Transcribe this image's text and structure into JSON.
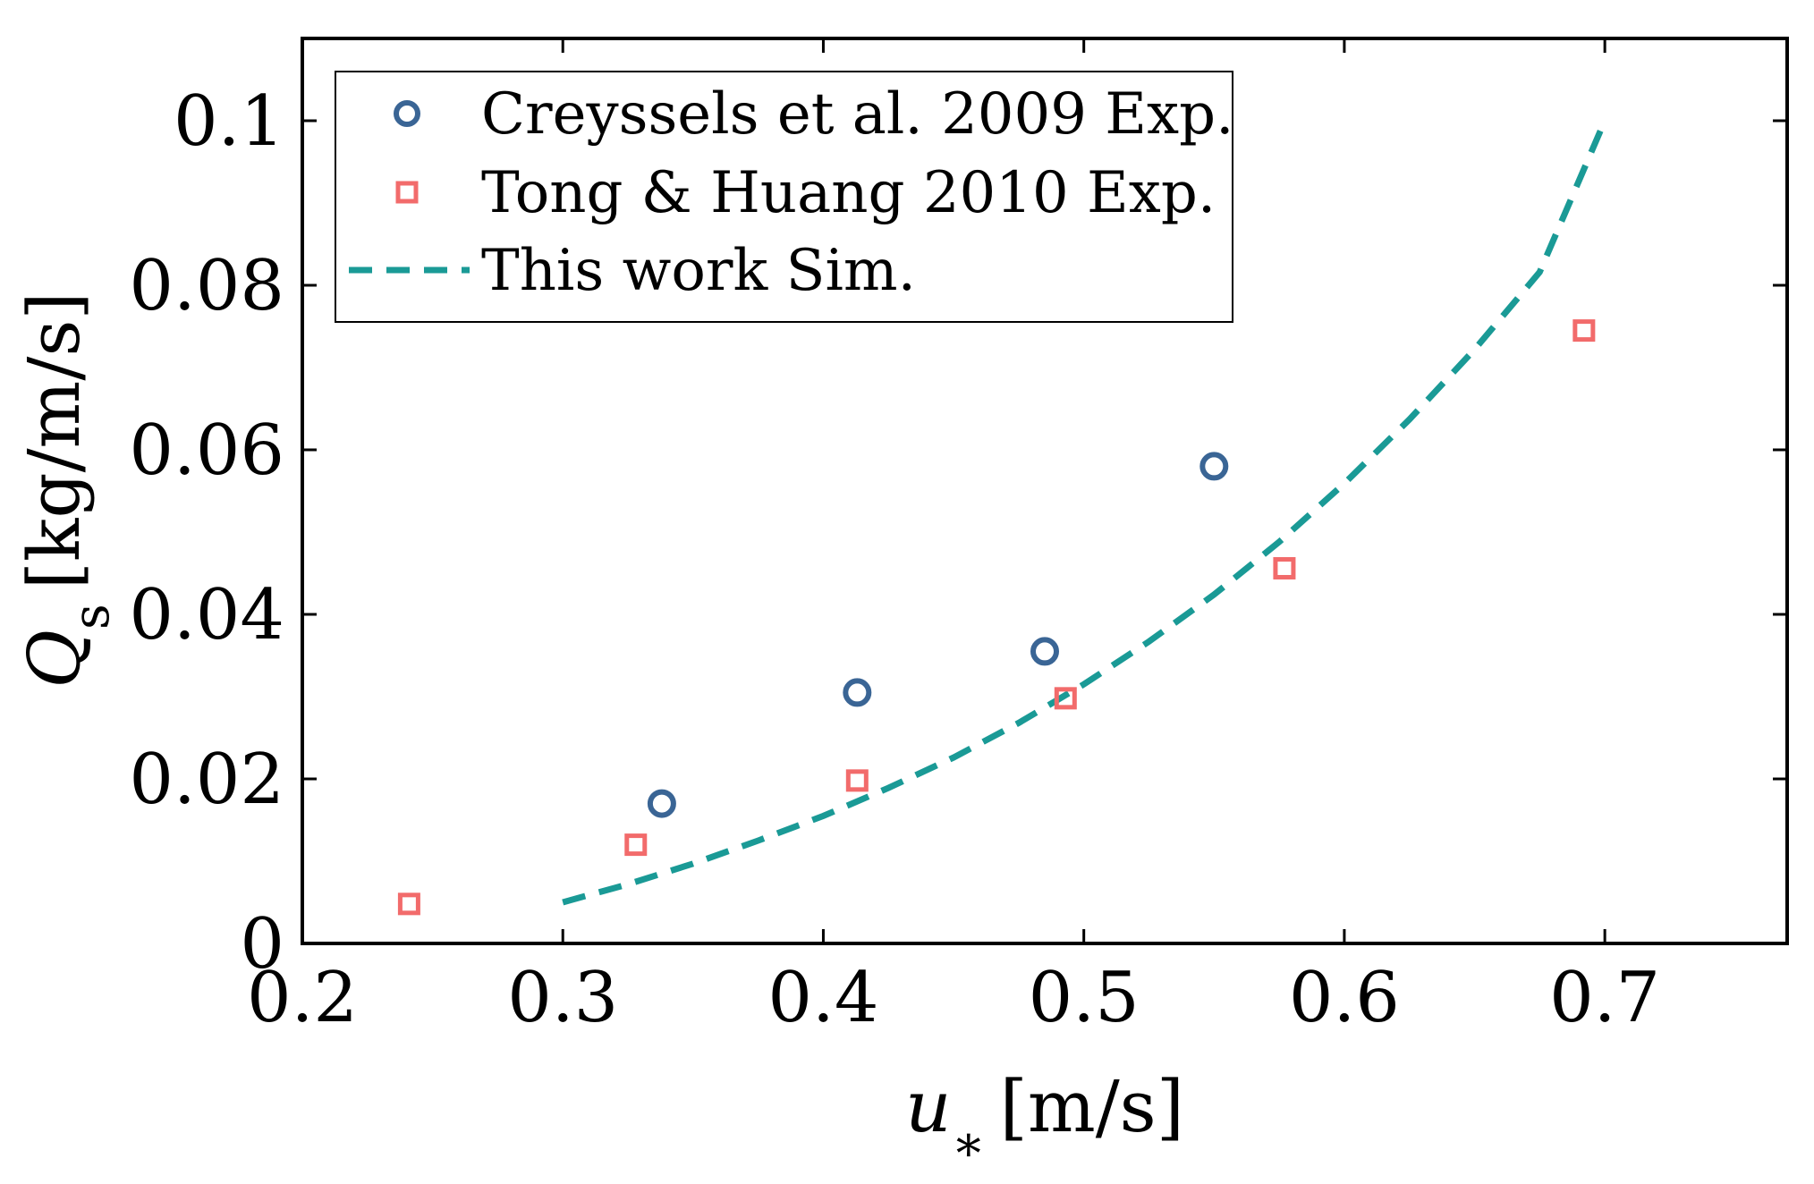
{
  "chart_data": {
    "type": "scatter",
    "xlabel": {
      "symbol": "u",
      "subscript": "∗",
      "unit": "[m/s]"
    },
    "ylabel": {
      "symbol": "Q",
      "subscript": "s",
      "unit": "[kg/m/s]"
    },
    "xlim": [
      0.2,
      0.77
    ],
    "ylim": [
      0,
      0.11
    ],
    "xticks": [
      0.2,
      0.3,
      0.4,
      0.5,
      0.6,
      0.7
    ],
    "xtick_labels": [
      "0.2",
      "0.3",
      "0.4",
      "0.5",
      "0.6",
      "0.7"
    ],
    "yticks": [
      0,
      0.02,
      0.04,
      0.06,
      0.08,
      0.1
    ],
    "ytick_labels": [
      "0",
      "0.02",
      "0.04",
      "0.06",
      "0.08",
      "0.1"
    ],
    "grid": false,
    "legend_position": "top-left",
    "series": [
      {
        "name": "Creyssels et al. 2009 Exp.",
        "marker": "circle",
        "color": "#3a6595",
        "x": [
          0.338,
          0.413,
          0.485,
          0.55
        ],
        "y": [
          0.017,
          0.0305,
          0.0355,
          0.058
        ]
      },
      {
        "name": "Tong & Huang 2010 Exp.",
        "marker": "square",
        "color": "#f26b6b",
        "x": [
          0.241,
          0.328,
          0.413,
          0.493,
          0.577,
          0.692
        ],
        "y": [
          0.0048,
          0.012,
          0.0198,
          0.0298,
          0.0456,
          0.0745
        ]
      },
      {
        "name": "This work Sim.",
        "marker": "dashed-line",
        "color": "#1a9a96",
        "x": [
          0.3,
          0.325,
          0.35,
          0.375,
          0.4,
          0.425,
          0.45,
          0.475,
          0.5,
          0.525,
          0.55,
          0.575,
          0.6,
          0.625,
          0.65,
          0.675,
          0.7
        ],
        "y": [
          0.005,
          0.0072,
          0.0097,
          0.0125,
          0.0155,
          0.0189,
          0.0226,
          0.0268,
          0.0315,
          0.0367,
          0.0424,
          0.0488,
          0.0559,
          0.0637,
          0.0722,
          0.0816,
          0.1
        ]
      }
    ]
  }
}
